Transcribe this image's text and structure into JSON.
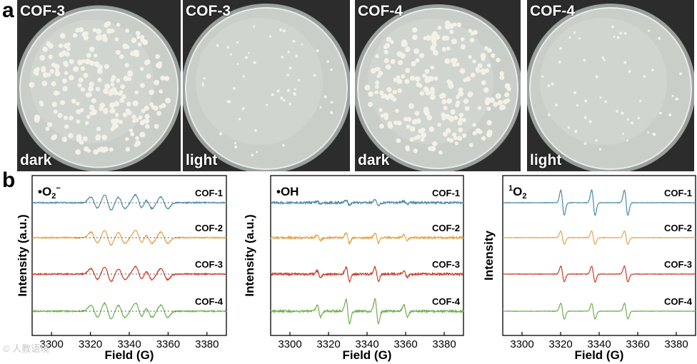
{
  "figure": {
    "panel_a_label": "a",
    "panel_b_label": "b",
    "watermark": "© 人教语境",
    "colors": {
      "cof1": "#4a8aa8",
      "cof2": "#e2a54a",
      "cof3": "#c83c2a",
      "cof4": "#6fae4e",
      "photo_bg": "#2c2c2c",
      "agar": "#c9cec9",
      "colony": "#f4f1e6"
    }
  },
  "dishes": [
    {
      "title": "COF-3",
      "condition": "dark",
      "colony_density": "high"
    },
    {
      "title": "COF-3",
      "condition": "light",
      "colony_density": "low"
    },
    {
      "title": "COF-4",
      "condition": "dark",
      "colony_density": "high"
    },
    {
      "title": "COF-4",
      "condition": "light",
      "colony_density": "low"
    }
  ],
  "chart_data": [
    {
      "type": "line",
      "title": "•O₂⁻",
      "title_main": "•O",
      "title_sub": "2",
      "title_sup": "−",
      "xlabel": "Field (G)",
      "ylabel": "Intensity (a.u.)",
      "xlim": [
        3290,
        3390
      ],
      "xticks": [
        3300,
        3320,
        3340,
        3360,
        3380
      ],
      "signal_type": "DMPO-superoxide",
      "series": [
        {
          "name": "COF-1",
          "peaks": [
            3322,
            3329,
            3336,
            3345,
            3350,
            3358
          ],
          "amplitude": 1.0
        },
        {
          "name": "COF-2",
          "peaks": [
            3322,
            3329,
            3336,
            3345,
            3350,
            3358
          ],
          "amplitude": 0.95
        },
        {
          "name": "COF-3",
          "peaks": [
            3322,
            3329,
            3336,
            3345,
            3350,
            3358
          ],
          "amplitude": 0.95
        },
        {
          "name": "COF-4",
          "peaks": [
            3322,
            3329,
            3336,
            3345,
            3350,
            3358
          ],
          "amplitude": 1.05
        }
      ]
    },
    {
      "type": "line",
      "title": "•OH",
      "title_main": "•OH",
      "xlabel": "Field (G)",
      "ylabel": "Intensity (a.u.)",
      "xlim": [
        3290,
        3390
      ],
      "xticks": [
        3300,
        3320,
        3340,
        3360,
        3380
      ],
      "signal_type": "DMPO-hydroxyl",
      "series": [
        {
          "name": "COF-1",
          "peaks": [
            3315,
            3330,
            3345,
            3360
          ],
          "amplitude": 0.3
        },
        {
          "name": "COF-2",
          "peaks": [
            3315,
            3330,
            3345,
            3360
          ],
          "amplitude": 0.55
        },
        {
          "name": "COF-3",
          "peaks": [
            3315,
            3330,
            3345,
            3360
          ],
          "amplitude": 0.75
        },
        {
          "name": "COF-4",
          "peaks": [
            3315,
            3330,
            3345,
            3360
          ],
          "amplitude": 1.3
        }
      ]
    },
    {
      "type": "line",
      "title": "¹O₂",
      "title_sup": "1",
      "title_main": "O",
      "title_sub": "2",
      "xlabel": "Field (G)",
      "ylabel": "Intensity",
      "xlim": [
        3290,
        3390
      ],
      "xticks": [
        3300,
        3320,
        3340,
        3360,
        3380
      ],
      "signal_type": "TEMP-singlet-oxygen",
      "series": [
        {
          "name": "COF-1",
          "peaks": [
            3321,
            3337,
            3354
          ],
          "amplitude": 1.6
        },
        {
          "name": "COF-2",
          "peaks": [
            3321,
            3337,
            3354
          ],
          "amplitude": 0.85
        },
        {
          "name": "COF-3",
          "peaks": [
            3321,
            3337,
            3354
          ],
          "amplitude": 1.0
        },
        {
          "name": "COF-4",
          "peaks": [
            3321,
            3337,
            3354
          ],
          "amplitude": 1.0
        }
      ]
    }
  ]
}
